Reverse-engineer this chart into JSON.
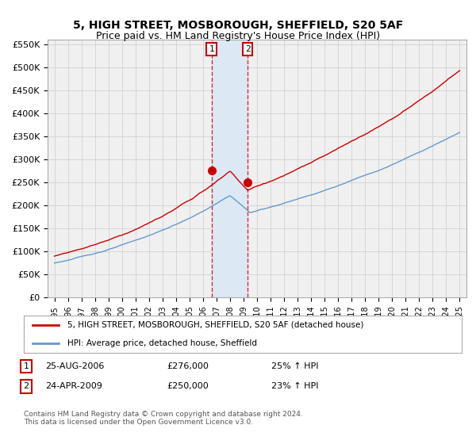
{
  "title": "5, HIGH STREET, MOSBOROUGH, SHEFFIELD, S20 5AF",
  "subtitle": "Price paid vs. HM Land Registry's House Price Index (HPI)",
  "ylabel_ticks": [
    "£0",
    "£50K",
    "£100K",
    "£150K",
    "£200K",
    "£250K",
    "£300K",
    "£350K",
    "£400K",
    "£450K",
    "£500K",
    "£550K"
  ],
  "ytick_values": [
    0,
    50000,
    100000,
    150000,
    200000,
    250000,
    300000,
    350000,
    400000,
    450000,
    500000,
    550000
  ],
  "x_start_year": 1995,
  "x_end_year": 2025,
  "transaction1": {
    "date": "2006-08-25",
    "price": 276000,
    "label": "1",
    "hpi_pct": 25,
    "x": 2006.63
  },
  "transaction2": {
    "date": "2009-04-24",
    "price": 250000,
    "label": "2",
    "hpi_pct": 23,
    "x": 2009.3
  },
  "red_line_color": "#cc0000",
  "blue_line_color": "#6699cc",
  "highlight_color": "#dce9f5",
  "dashed_line_color": "#cc0000",
  "grid_color": "#cccccc",
  "background_color": "#f0f0f0",
  "legend_label_red": "5, HIGH STREET, MOSBOROUGH, SHEFFIELD, S20 5AF (detached house)",
  "legend_label_blue": "HPI: Average price, detached house, Sheffield",
  "footer": "Contains HM Land Registry data © Crown copyright and database right 2024.\nThis data is licensed under the Open Government Licence v3.0."
}
